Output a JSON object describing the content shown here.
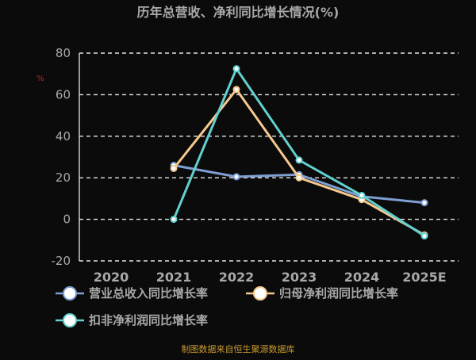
{
  "chart_data": {
    "type": "line",
    "title": "历年总营收、净利同比增长情况(%)",
    "ylabel": "%",
    "categories": [
      "2020",
      "2021",
      "2022",
      "2023",
      "2024",
      "2025E"
    ],
    "ylim": [
      -20,
      80
    ],
    "yticks": [
      80,
      60,
      40,
      20,
      0,
      -20
    ],
    "grid": true,
    "legend_position": "bottom",
    "series": [
      {
        "name": "营业总收入同比增长率",
        "color": "#7f9fd3",
        "values": [
          null,
          26,
          20.5,
          21.5,
          11,
          8
        ]
      },
      {
        "name": "归母净利润同比增长率",
        "color": "#f5c98d",
        "values": [
          null,
          24.5,
          62.5,
          20,
          9.5,
          -7.5
        ]
      },
      {
        "name": "扣非净利润同比增长率",
        "color": "#63cfcf",
        "values": [
          null,
          0,
          72.5,
          28.5,
          11.5,
          -8
        ]
      }
    ],
    "source": "制图数据来自恒生聚源数据库"
  }
}
